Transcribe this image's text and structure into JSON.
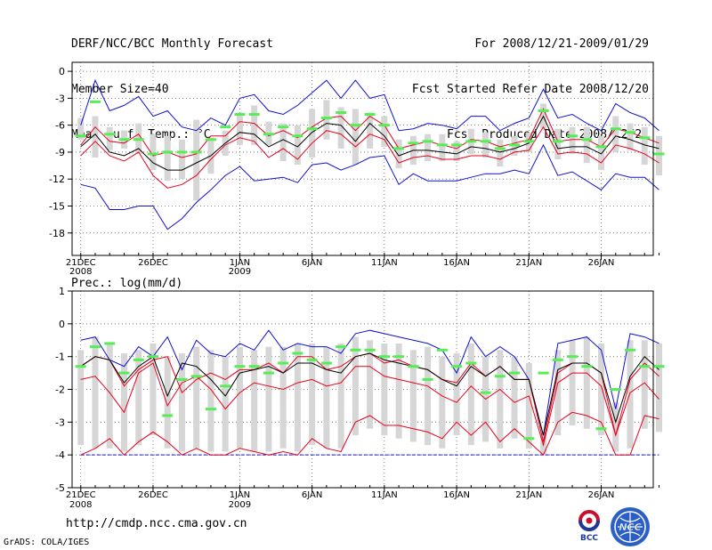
{
  "header": {
    "left_lines": [
      "DERF/NCC/BCC Monthly Forecast",
      "Member Size=40",
      "Mean Surf. Temp.: °C"
    ],
    "right_lines": [
      "For 2008/12/21-2009/01/29",
      "Fcst Started Refer Date 2008/12/20",
      "Fcst Produced Date 2008/12/21"
    ]
  },
  "footer": {
    "url": "http://cmdp.ncc.cma.gov.cn",
    "credit": "GrADS: COLA/IGES"
  },
  "logos": {
    "bcc": "BCC",
    "ncc": "NCC"
  },
  "colors": {
    "mean": "#000000",
    "member_line": "#e8001c",
    "envelope": "#1010d0",
    "marker": "#55ee55",
    "box": "#d6d6d6",
    "grid": "#666666"
  },
  "chart_data": [
    {
      "type": "line",
      "title": "Mean Surf. Temp.: °C",
      "x_labels": [
        {
          "day": 0,
          "label": "21DEC",
          "sub": "2008"
        },
        {
          "day": 5,
          "label": "26DEC",
          "sub": ""
        },
        {
          "day": 11,
          "label": "1JAN",
          "sub": "2009"
        },
        {
          "day": 16,
          "label": "6JAN",
          "sub": ""
        },
        {
          "day": 21,
          "label": "11JAN",
          "sub": ""
        },
        {
          "day": 26,
          "label": "16JAN",
          "sub": ""
        },
        {
          "day": 31,
          "label": "21JAN",
          "sub": ""
        },
        {
          "day": 36,
          "label": "26JAN",
          "sub": ""
        }
      ],
      "xlim": [
        -0.6,
        39.6
      ],
      "ylim": [
        -20.5,
        1
      ],
      "yticks": [
        0,
        -3,
        -6,
        -9,
        -12,
        -15,
        -18
      ],
      "grid": true,
      "series": [
        {
          "name": "envelope-max",
          "color": "#1010d0",
          "values": [
            -6.0,
            -1.0,
            -4.4,
            -3.8,
            -2.8,
            -5.0,
            -4.4,
            -6.2,
            -6.6,
            -5.2,
            -6.0,
            -3.0,
            -2.6,
            -4.4,
            -4.8,
            -3.8,
            -2.4,
            -1.0,
            -3.0,
            -1.0,
            -3.0,
            -2.6,
            -6.6,
            -6.4,
            -5.8,
            -6.0,
            -6.4,
            -5.0,
            -5.0,
            -6.6,
            -5.8,
            -5.2,
            -2.0,
            -5.2,
            -4.8,
            -5.8,
            -6.6,
            -3.6,
            -4.6,
            -5.2,
            -6.6
          ]
        },
        {
          "name": "member-upper",
          "color": "#e8001c",
          "values": [
            -8.2,
            -6.2,
            -7.8,
            -8.0,
            -7.0,
            -9.4,
            -9.0,
            -9.6,
            -9.2,
            -7.2,
            -7.2,
            -5.6,
            -5.8,
            -7.2,
            -6.6,
            -7.4,
            -6.2,
            -5.2,
            -5.0,
            -6.6,
            -5.0,
            -6.0,
            -8.6,
            -8.2,
            -7.8,
            -8.2,
            -8.6,
            -7.6,
            -7.8,
            -8.4,
            -8.0,
            -7.6,
            -4.2,
            -7.8,
            -7.6,
            -7.6,
            -8.4,
            -6.4,
            -6.8,
            -7.4,
            -8.0
          ]
        },
        {
          "name": "ensemble-mean",
          "color": "#000000",
          "values": [
            -8.4,
            -7.0,
            -9.0,
            -9.4,
            -8.6,
            -10.2,
            -11.0,
            -11.0,
            -10.2,
            -9.4,
            -8.0,
            -6.8,
            -7.0,
            -8.4,
            -7.6,
            -8.4,
            -6.8,
            -5.8,
            -6.0,
            -7.8,
            -5.8,
            -7.2,
            -9.4,
            -8.8,
            -8.8,
            -9.0,
            -9.2,
            -8.4,
            -8.6,
            -9.0,
            -8.6,
            -8.0,
            -5.0,
            -8.6,
            -8.4,
            -8.4,
            -9.2,
            -7.2,
            -7.6,
            -8.2,
            -8.6
          ]
        },
        {
          "name": "member-lower",
          "color": "#e8001c",
          "values": [
            -9.4,
            -7.8,
            -9.4,
            -10.0,
            -9.0,
            -11.6,
            -13.0,
            -12.6,
            -11.6,
            -9.8,
            -8.2,
            -7.4,
            -7.8,
            -9.6,
            -8.6,
            -9.8,
            -8.0,
            -6.6,
            -7.0,
            -8.4,
            -7.0,
            -7.6,
            -10.2,
            -9.6,
            -9.4,
            -9.8,
            -9.8,
            -9.4,
            -9.4,
            -9.8,
            -9.0,
            -8.8,
            -6.2,
            -9.2,
            -9.0,
            -9.2,
            -10.2,
            -8.2,
            -8.6,
            -9.2,
            -10.2
          ]
        },
        {
          "name": "envelope-min",
          "color": "#1010d0",
          "values": [
            -12.6,
            -13.0,
            -15.4,
            -15.4,
            -15.0,
            -15.0,
            -17.6,
            -16.4,
            -14.6,
            -13.2,
            -11.6,
            -10.6,
            -12.2,
            -12.0,
            -11.8,
            -12.4,
            -10.4,
            -10.2,
            -11.0,
            -10.4,
            -9.6,
            -9.4,
            -12.6,
            -11.4,
            -12.2,
            -12.2,
            -12.2,
            -11.8,
            -11.4,
            -11.4,
            -11.0,
            -11.4,
            -8.2,
            -11.6,
            -11.2,
            -12.2,
            -13.2,
            -11.4,
            -11.8,
            -11.8,
            -13.2
          ]
        },
        {
          "name": "marker",
          "color": "#55ee55",
          "values": [
            -7.2,
            -3.4,
            -7.0,
            -7.6,
            -7.6,
            -9.2,
            -9.0,
            -9.0,
            -9.0,
            -7.6,
            -6.2,
            -4.8,
            -4.8,
            -7.0,
            -6.2,
            -7.2,
            -6.4,
            -5.2,
            -4.6,
            -6.0,
            -4.8,
            -6.0,
            -8.6,
            -8.0,
            -7.8,
            -8.2,
            -8.2,
            -7.8,
            -7.8,
            -8.6,
            -8.2,
            -7.8,
            -4.4,
            -7.8,
            -7.2,
            -7.6,
            -8.4,
            -6.4,
            -6.8,
            -7.4,
            -9.2
          ]
        },
        {
          "name": "range-box-top",
          "color": "#d6d6d6",
          "values": [
            -5.2,
            -5.0,
            -6.2,
            -6.6,
            -5.8,
            -7.0,
            -7.2,
            -7.6,
            -5.4,
            -7.4,
            -6.6,
            -4.6,
            -3.8,
            -5.6,
            -5.8,
            -6.0,
            -4.2,
            -3.2,
            -4.0,
            -4.2,
            -4.6,
            -5.0,
            -7.6,
            -7.2,
            -7.0,
            -7.0,
            -7.8,
            -6.4,
            -6.8,
            -7.6,
            -7.2,
            -6.8,
            -3.6,
            -6.4,
            -6.2,
            -6.2,
            -7.2,
            -5.0,
            -5.8,
            -6.2,
            -7.2
          ]
        },
        {
          "name": "range-box-bottom",
          "color": "#d6d6d6",
          "values": [
            -7.6,
            -9.6,
            -8.8,
            -8.6,
            -9.2,
            -11.0,
            -12.2,
            -12.0,
            -14.4,
            -11.4,
            -9.4,
            -8.2,
            -8.2,
            -8.2,
            -10.0,
            -10.4,
            -9.6,
            -7.6,
            -8.6,
            -10.4,
            -8.6,
            -8.4,
            -10.8,
            -10.4,
            -10.0,
            -10.0,
            -10.0,
            -9.2,
            -9.6,
            -10.6,
            -9.4,
            -9.0,
            -6.4,
            -9.8,
            -9.2,
            -10.2,
            -11.0,
            -9.0,
            -8.8,
            -10.4,
            -11.6
          ]
        }
      ]
    },
    {
      "type": "line",
      "title": "Prec.: log(mm/d)",
      "x_labels": [
        {
          "day": 0,
          "label": "21DEC",
          "sub": "2008"
        },
        {
          "day": 5,
          "label": "26DEC",
          "sub": ""
        },
        {
          "day": 11,
          "label": "1JAN",
          "sub": "2009"
        },
        {
          "day": 16,
          "label": "6JAN",
          "sub": ""
        },
        {
          "day": 21,
          "label": "11JAN",
          "sub": ""
        },
        {
          "day": 26,
          "label": "16JAN",
          "sub": ""
        },
        {
          "day": 31,
          "label": "21JAN",
          "sub": ""
        },
        {
          "day": 36,
          "label": "26JAN",
          "sub": ""
        }
      ],
      "xlim": [
        -0.6,
        39.6
      ],
      "ylim": [
        -5,
        1
      ],
      "yticks": [
        1,
        0,
        -1,
        -2,
        -3,
        -4,
        -5
      ],
      "grid": true,
      "baseline": -4,
      "series": [
        {
          "name": "envelope-max",
          "color": "#1010d0",
          "values": [
            -0.5,
            -0.4,
            -1.1,
            -1.3,
            -0.7,
            -1.0,
            -0.4,
            -1.4,
            -0.5,
            -0.9,
            -1.0,
            -0.6,
            -0.8,
            -0.2,
            -0.8,
            -0.6,
            -0.7,
            -0.7,
            -0.9,
            -0.3,
            -0.2,
            -0.3,
            -0.4,
            -0.5,
            -0.6,
            -0.8,
            -1.5,
            -0.4,
            -1.0,
            -0.7,
            -1.0,
            -1.7,
            -3.4,
            -0.6,
            -0.5,
            -0.4,
            -0.8,
            -2.6,
            -0.3,
            -0.4,
            -0.6
          ]
        },
        {
          "name": "member-upper",
          "color": "#e8001c",
          "values": [
            -1.3,
            -1.0,
            -1.1,
            -1.9,
            -1.4,
            -1.1,
            -1.0,
            -2.1,
            -1.7,
            -1.5,
            -1.7,
            -1.4,
            -1.4,
            -1.2,
            -1.5,
            -1.0,
            -1.0,
            -1.4,
            -1.3,
            -1.0,
            -0.9,
            -1.2,
            -1.1,
            -1.3,
            -1.4,
            -1.7,
            -1.8,
            -1.2,
            -1.6,
            -1.3,
            -1.7,
            -1.7,
            -3.6,
            -1.5,
            -1.2,
            -1.2,
            -1.5,
            -3.4,
            -1.7,
            -1.2,
            -1.6
          ]
        },
        {
          "name": "ensemble-mean",
          "color": "#000000",
          "values": [
            -1.3,
            -1.0,
            -1.1,
            -1.8,
            -1.3,
            -1.0,
            -2.2,
            -1.2,
            -1.3,
            -1.7,
            -2.2,
            -1.5,
            -1.4,
            -1.3,
            -1.5,
            -1.2,
            -1.2,
            -1.4,
            -1.5,
            -1.0,
            -0.9,
            -1.1,
            -1.2,
            -1.3,
            -1.4,
            -1.7,
            -1.9,
            -1.3,
            -1.6,
            -1.3,
            -1.7,
            -1.7,
            -3.4,
            -1.4,
            -1.2,
            -1.2,
            -1.5,
            -3.0,
            -1.6,
            -1.0,
            -1.4
          ]
        },
        {
          "name": "member-lower",
          "color": "#e8001c",
          "values": [
            -1.7,
            -1.6,
            -2.1,
            -2.7,
            -1.5,
            -1.2,
            -2.5,
            -1.8,
            -1.6,
            -2.0,
            -2.6,
            -2.1,
            -1.8,
            -1.9,
            -2.0,
            -1.8,
            -1.7,
            -1.9,
            -1.8,
            -1.3,
            -1.3,
            -1.6,
            -1.7,
            -1.8,
            -1.9,
            -2.2,
            -2.4,
            -1.9,
            -2.3,
            -2.0,
            -2.4,
            -2.2,
            -3.7,
            -1.8,
            -1.5,
            -1.5,
            -1.9,
            -3.4,
            -2.1,
            -1.8,
            -2.3
          ]
        },
        {
          "name": "lower-bound",
          "color": "#e8001c",
          "values": [
            -4.0,
            -3.8,
            -3.5,
            -4.0,
            -3.6,
            -3.3,
            -3.6,
            -4.0,
            -3.8,
            -4.0,
            -4.0,
            -3.8,
            -3.9,
            -4.0,
            -3.9,
            -4.0,
            -3.5,
            -3.8,
            -3.9,
            -3.0,
            -2.8,
            -3.1,
            -3.1,
            -3.2,
            -3.3,
            -3.5,
            -3.0,
            -3.4,
            -3.0,
            -3.6,
            -3.2,
            -3.6,
            -4.0,
            -3.0,
            -2.7,
            -2.8,
            -3.0,
            -4.0,
            -4.0,
            -2.8,
            -2.9
          ]
        },
        {
          "name": "marker",
          "color": "#55ee55",
          "values": [
            -1.3,
            -0.7,
            -0.6,
            -1.5,
            -1.1,
            -1.0,
            -2.8,
            -1.7,
            -1.6,
            -2.6,
            -1.9,
            -1.3,
            -1.3,
            -1.5,
            -1.2,
            -0.9,
            -1.1,
            -1.2,
            -0.7,
            -0.8,
            -0.8,
            -1.0,
            -1.0,
            -1.3,
            -1.7,
            -0.8,
            -1.3,
            -1.2,
            -2.1,
            -1.6,
            -1.5,
            -3.5,
            -1.5,
            -1.1,
            -1.0,
            -1.3,
            -3.2,
            -2.0,
            -0.8,
            -1.3,
            -1.3
          ]
        },
        {
          "name": "range-box-top",
          "color": "#d6d6d6",
          "values": [
            -0.8,
            -0.4,
            -0.6,
            -0.9,
            -0.8,
            -0.6,
            -1.0,
            -0.9,
            -0.7,
            -0.8,
            -1.0,
            -0.7,
            -0.8,
            -0.7,
            -0.7,
            -0.6,
            -0.6,
            -0.7,
            -0.6,
            -0.4,
            -0.5,
            -0.6,
            -0.6,
            -0.8,
            -0.7,
            -1.0,
            -0.9,
            -0.6,
            -1.0,
            -0.8,
            -1.0,
            -1.2,
            -3.3,
            -0.8,
            -0.5,
            -0.4,
            -0.6,
            -2.4,
            -0.5,
            -0.5,
            -0.6
          ]
        },
        {
          "name": "range-box-bottom",
          "color": "#d6d6d6",
          "values": [
            -3.7,
            -3.8,
            -3.8,
            -3.9,
            -3.7,
            -3.4,
            -3.8,
            -3.9,
            -3.8,
            -3.9,
            -3.9,
            -3.8,
            -3.9,
            -3.9,
            -3.8,
            -3.9,
            -3.7,
            -3.8,
            -3.8,
            -3.4,
            -3.2,
            -3.4,
            -3.5,
            -3.6,
            -3.7,
            -3.8,
            -3.4,
            -3.7,
            -3.6,
            -3.8,
            -3.5,
            -3.8,
            -4.0,
            -3.4,
            -3.1,
            -3.2,
            -3.4,
            -3.9,
            -3.8,
            -3.2,
            -3.3
          ]
        }
      ]
    }
  ]
}
